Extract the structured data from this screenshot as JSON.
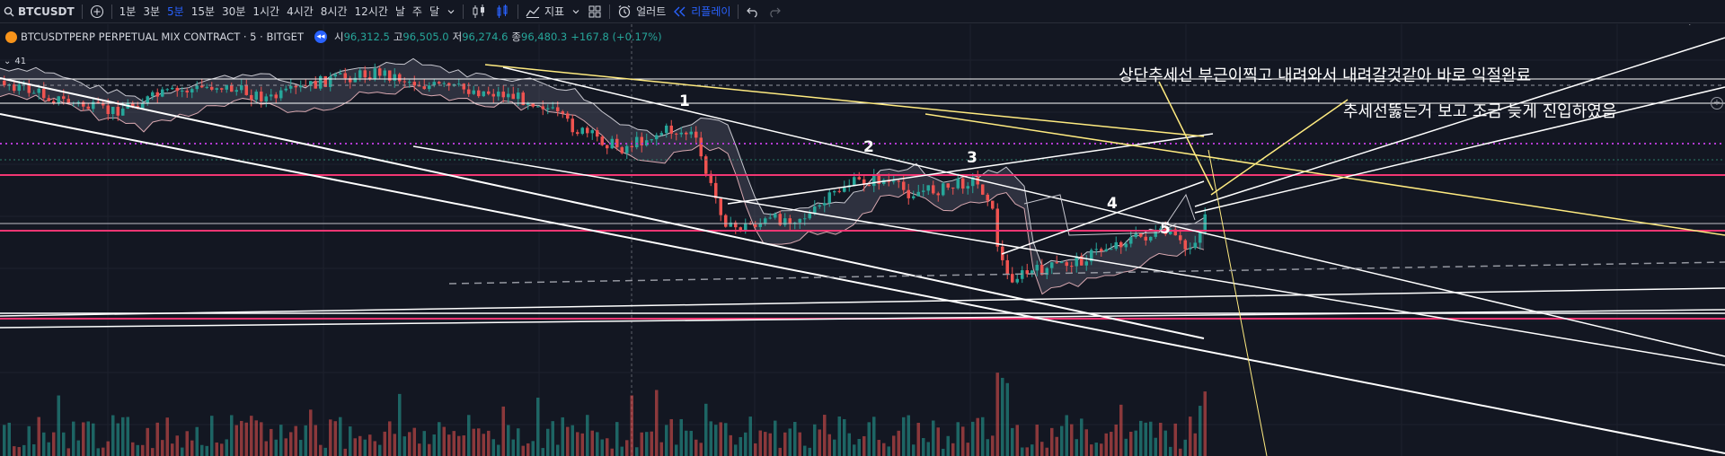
{
  "toolbar": {
    "symbol": "BTCUSDT",
    "timeframes": [
      "1분",
      "3분",
      "5분",
      "15분",
      "30분",
      "1시간",
      "4시간",
      "8시간",
      "12시간",
      "날",
      "주",
      "달"
    ],
    "active_timeframe": "5분",
    "indicators_label": "지표",
    "alert_label": "얼러트",
    "replay_label": "리플레이"
  },
  "legend": {
    "title": "BTCUSDTPERP PERPETUAL MIX CONTRACT · 5 · BITGET",
    "open_label": "시",
    "open_value": "96,312.5",
    "high_label": "고",
    "high_value": "96,505.0",
    "low_label": "저",
    "low_value": "96,274.6",
    "close_label": "종",
    "close_value": "96,480.3",
    "change": "+167.8 (+0.17%)"
  },
  "indicator_badge": "41",
  "annotations": {
    "upper": "상단추세선 부근이찍고 내려와서 내려갈것같아 바로 익절완료",
    "lower": "추세선뚫는거 보고 조금 늦게 진입하였음"
  },
  "waves": [
    "1",
    "2",
    "3",
    "4",
    "5"
  ],
  "colors": {
    "background": "#131722",
    "up": "#26a69a",
    "down": "#ef5350",
    "line_white": "#ffffff",
    "line_yellow": "#ffeb80",
    "line_pink": "#f23673",
    "line_purple": "#b23ad1"
  },
  "icons": [
    "search-icon",
    "add-symbol-icon",
    "chevron-down-icon",
    "candles-icon",
    "bar-style-icon",
    "indicators-icon",
    "templates-icon",
    "alert-icon",
    "replay-icon",
    "undo-icon",
    "redo-icon"
  ]
}
